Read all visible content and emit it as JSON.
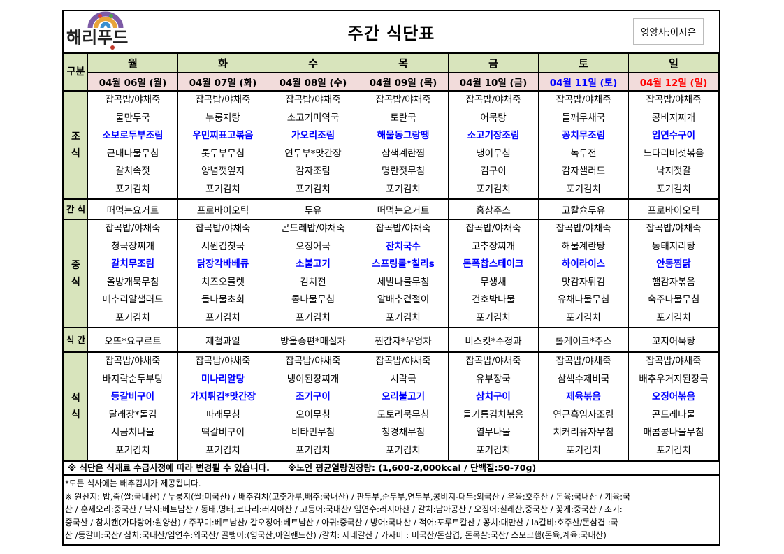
{
  "header": {
    "logo_text": "해리푸드",
    "title": "주간 식단표",
    "dietitian": "영양사:이시은"
  },
  "table": {
    "category_label": "구분",
    "days": [
      {
        "day": "월",
        "date": "04월 06일 (월)"
      },
      {
        "day": "화",
        "date": "04월 07일 (화)"
      },
      {
        "day": "수",
        "date": "04월 08일 (수)"
      },
      {
        "day": "목",
        "date": "04월 09일 (목)"
      },
      {
        "day": "금",
        "date": "04월 10일 (금)"
      },
      {
        "day": "토",
        "date": "04월 11일 (토)"
      },
      {
        "day": "일",
        "date": "04월 12일 (일)"
      }
    ],
    "colors": {
      "header_bg": "#d8e4bc",
      "date_bg": "#f2dcdb",
      "highlight": "#0000ff",
      "saturday": "#0000ff",
      "sunday": "#ff0000"
    },
    "breakfast": {
      "label": "조 식",
      "menus": [
        {
          "items": [
            "잡곡밥/야채죽",
            "물만두국",
            "소보로두부조림",
            "근대나물무침",
            "갈치속젓",
            "포기김치"
          ],
          "highlight": [
            2
          ]
        },
        {
          "items": [
            "잡곡밥/야채죽",
            "누룽지탕",
            "우민찌표고볶음",
            "톳두부무침",
            "양념깻잎지",
            "포기김치"
          ],
          "highlight": [
            2
          ]
        },
        {
          "items": [
            "잡곡밥/야채죽",
            "소고기미역국",
            "가오리조림",
            "연두부*맛간장",
            "감자조림",
            "포기김치"
          ],
          "highlight": [
            2
          ]
        },
        {
          "items": [
            "잡곡밥/야채죽",
            "토란국",
            "해물동그랑땡",
            "삼색계란찜",
            "명란젓무침",
            "포기김치"
          ],
          "highlight": [
            2
          ]
        },
        {
          "items": [
            "잡곡밥/야채죽",
            "어묵탕",
            "소고기장조림",
            "냉이무침",
            "김구이",
            "포기김치"
          ],
          "highlight": [
            2
          ]
        },
        {
          "items": [
            "잡곡밥/야채죽",
            "들깨무채국",
            "꽁치무조림",
            "녹두전",
            "감자샐러드",
            "포기김치"
          ],
          "highlight": [
            2
          ]
        },
        {
          "items": [
            "잡곡밥/야채죽",
            "콩비지찌개",
            "임연수구이",
            "느타리버섯볶음",
            "낙지젓갈",
            "포기김치"
          ],
          "highlight": [
            2
          ]
        }
      ]
    },
    "snack1": {
      "label": "간 식",
      "items": [
        "떠먹는요거트",
        "프로바이오틱",
        "두유",
        "떠먹는요거트",
        "홍삼주스",
        "고칼슘두유",
        "프로바이오틱"
      ]
    },
    "lunch": {
      "label": "중 식",
      "menus": [
        {
          "items": [
            "잡곡밥/야채죽",
            "청국장찌개",
            "갈치무조림",
            "올방개묵무침",
            "메추리알샐러드",
            "포기김치"
          ],
          "highlight": [
            2
          ]
        },
        {
          "items": [
            "잡곡밥/야채죽",
            "시원김칫국",
            "닭장각바베큐",
            "치즈오믈렛",
            "돌나물초회",
            "포기김치"
          ],
          "highlight": [
            2
          ]
        },
        {
          "items": [
            "곤드레밥/야채죽",
            "오징어국",
            "소불고기",
            "김치전",
            "콩나물무침",
            "포기김치"
          ],
          "highlight": [
            2
          ]
        },
        {
          "items": [
            "잡곡밥/야채죽",
            "잔치국수",
            "스프링롤*칠리s",
            "세발나물무침",
            "알배추겉절이",
            "포기김치"
          ],
          "highlight": [
            1,
            2
          ]
        },
        {
          "items": [
            "잡곡밥/야채죽",
            "고추장찌개",
            "돈폭찹스테이크",
            "무생채",
            "건호박나물",
            "포기김치"
          ],
          "highlight": [
            2
          ]
        },
        {
          "items": [
            "잡곡밥/야채죽",
            "해물계란탕",
            "하이라이스",
            "맛감자튀김",
            "유채나물무침",
            "포기김치"
          ],
          "highlight": [
            2
          ]
        },
        {
          "items": [
            "잡곡밥/야채죽",
            "동태지리탕",
            "안동찜닭",
            "햄감자볶음",
            "숙주나물무침",
            "포기김치"
          ],
          "highlight": [
            2
          ]
        }
      ]
    },
    "snack2": {
      "label": "식 간",
      "items": [
        "오뜨*요구르트",
        "제철과일",
        "방울증편*매실차",
        "찐감자*우엉차",
        "비스킷*수정과",
        "롤케이크*주스",
        "꼬지어묵탕"
      ]
    },
    "dinner": {
      "label": "석 식",
      "menus": [
        {
          "items": [
            "잡곡밥/야채죽",
            "바지락순두부탕",
            "등갈비구이",
            "달래장*돌김",
            "시금치나물",
            "포기김치"
          ],
          "highlight": [
            2
          ]
        },
        {
          "items": [
            "잡곡밥/야채죽",
            "미나리알탕",
            "가지튀김*맛간장",
            "파래무침",
            "떡갈비구이",
            "포기김치"
          ],
          "highlight": [
            1,
            2
          ]
        },
        {
          "items": [
            "잡곡밥/야채죽",
            "냉이된장찌개",
            "조기구이",
            "오이무침",
            "비타민무침",
            "포기김치"
          ],
          "highlight": [
            2
          ]
        },
        {
          "items": [
            "잡곡밥/야채죽",
            "시락국",
            "오리불고기",
            "도토리묵무침",
            "청경채무침",
            "포기김치"
          ],
          "highlight": [
            2
          ]
        },
        {
          "items": [
            "잡곡밥/야채죽",
            "유부장국",
            "삼치구이",
            "들기름김치볶음",
            "열무나물",
            "포기김치"
          ],
          "highlight": [
            2
          ]
        },
        {
          "items": [
            "잡곡밥/야채죽",
            "삼색수제비국",
            "제육볶음",
            "연근흑임자조림",
            "치커리유자무침",
            "포기김치"
          ],
          "highlight": [
            2
          ]
        },
        {
          "items": [
            "잡곡밥/야채죽",
            "배추우거지된장국",
            "오징어볶음",
            "곤드레나물",
            "매콤콩나물무침",
            "포기김치"
          ],
          "highlight": [
            2
          ]
        }
      ]
    }
  },
  "note": "※ 식단은 식재료 수급사정에 따라 변경될 수 있습니다.      ※노인 평균열량권장량: (1,600-2,000kcal / 단백질:50-70g)",
  "footer": {
    "lines": [
      "*모든 식사에는 배추김치가 제공됩니다.",
      "※ 원산지: 밥,죽(쌀:국내산) / 누룽지(쌀:미국산) / 배추김치(고춧가루,배추:국내산) / 판두부,순두부,연두부,콩비지-대두:외국산 / 우육:호주산 / 돈육:국내산 / 계육:국",
      "산 / 훈제오리:중국산 / 낙지:베트남산 / 동태,명태,코다리:러시아산 / 고등어:국내산/ 임연수:러시아산 / 갈치:남아공산 / 오징어:칠레산,중국산 / 꽃게:중국산 / 조기:",
      "중국산 / 참치캔(가다랑어:원양산) / 주꾸미:베트남산/ 갑오징어:베트남산 / 아귀:중국산 / 방어:국내산 / 적어:포루트칼산 / 꽁치:대만산 / la갈비:호주산/돈삼겹 :국",
      "산 /등갈비:국산/ 삼치:국내산/임연수:외국산/ 골뱅이:(영국산,아일랜드산) /갈치: 세네갈산 / 가자미 : 미국산/돈삼겹, 돈목살:국산/ 스모크햄(돈육,계육:국내산)"
    ]
  }
}
